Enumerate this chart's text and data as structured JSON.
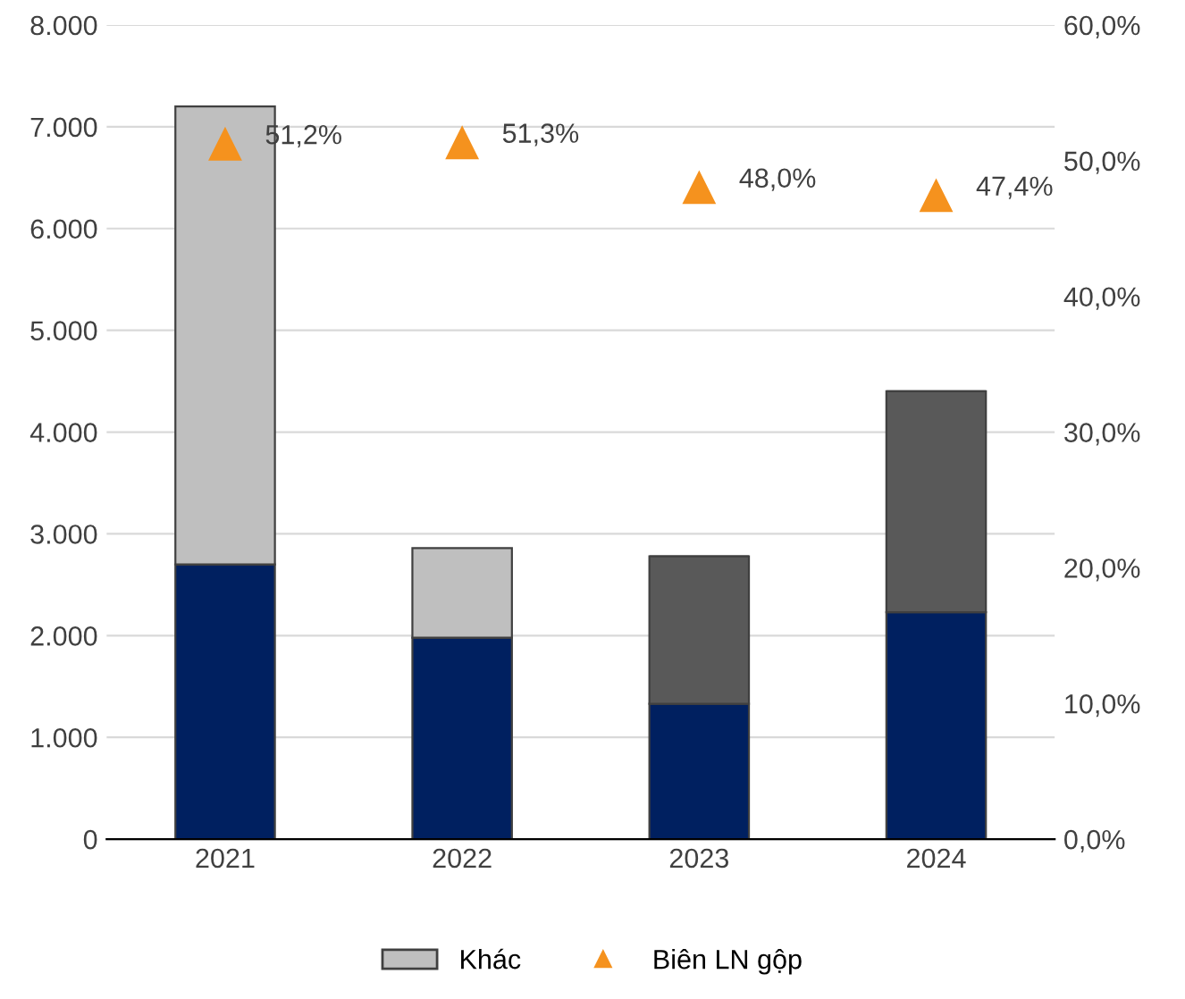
{
  "chart_data": {
    "type": "bar",
    "stacked": true,
    "categories": [
      "2021",
      "2022",
      "2023",
      "2024"
    ],
    "series": [
      {
        "color": "#002060",
        "values": [
          2700,
          1980,
          1330,
          2230
        ]
      },
      {
        "color": "#595959",
        "values": [
          null,
          null,
          1450,
          2170
        ]
      },
      {
        "name": "Khác",
        "color": "#bfbfbf",
        "values": [
          4500,
          880,
          null,
          null
        ]
      },
      {
        "type": "scatter",
        "name": "Biên LN gộp",
        "color": "#f5921e",
        "axis": "y2",
        "marker": "triangle",
        "values": [
          51.2,
          51.3,
          48.0,
          47.4
        ],
        "value_labels": [
          "51,2%",
          "51,3%",
          "48,0%",
          "47,4%"
        ]
      }
    ],
    "ylim": [
      0,
      8000
    ],
    "yticks": [
      {
        "value": 0,
        "label": "0"
      },
      {
        "value": 1000,
        "label": "1.000"
      },
      {
        "value": 2000,
        "label": "2.000"
      },
      {
        "value": 3000,
        "label": "3.000"
      },
      {
        "value": 4000,
        "label": "4.000"
      },
      {
        "value": 5000,
        "label": "5.000"
      },
      {
        "value": 6000,
        "label": "6.000"
      },
      {
        "value": 7000,
        "label": "7.000"
      },
      {
        "value": 8000,
        "label": "8.000"
      }
    ],
    "y2lim": [
      0,
      60
    ],
    "y2ticks": [
      {
        "value": 0,
        "label": "0,0%"
      },
      {
        "value": 10,
        "label": "10,0%"
      },
      {
        "value": 20,
        "label": "20,0%"
      },
      {
        "value": 30,
        "label": "30,0%"
      },
      {
        "value": 40,
        "label": "40,0%"
      },
      {
        "value": 50,
        "label": "50,0%"
      },
      {
        "value": 60,
        "label": "60,0%"
      }
    ],
    "grid": "y",
    "legend": "bottom"
  }
}
